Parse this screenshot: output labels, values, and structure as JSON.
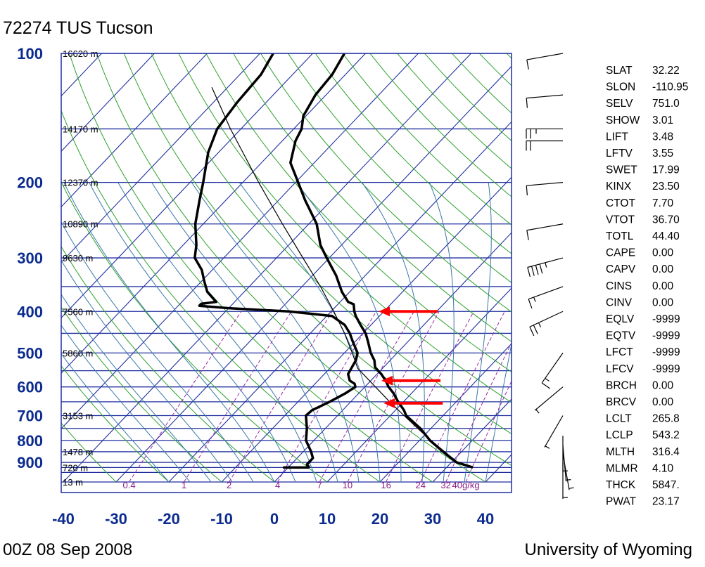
{
  "header": {
    "title": "72274 TUS Tucson"
  },
  "footer": {
    "date": "00Z 08 Sep 2008",
    "source": "University of Wyoming"
  },
  "chart_data": {
    "type": "skew-t",
    "title": "72274 TUS Tucson",
    "xlabel": "",
    "ylabel": "",
    "x_ticks": [
      "-40",
      "-30",
      "-20",
      "-10",
      "0",
      "10",
      "20",
      "30",
      "40"
    ],
    "y_ticks": [
      {
        "p": 100,
        "label": "100"
      },
      {
        "p": 200,
        "label": "200"
      },
      {
        "p": 300,
        "label": "300"
      },
      {
        "p": 400,
        "label": "400"
      },
      {
        "p": 500,
        "label": "500"
      },
      {
        "p": 600,
        "label": "600"
      },
      {
        "p": 700,
        "label": "700"
      },
      {
        "p": 800,
        "label": "800"
      },
      {
        "p": 900,
        "label": "900"
      }
    ],
    "height_labels": [
      {
        "p": 100,
        "label": "16620 m"
      },
      {
        "p": 150,
        "label": "14170 m"
      },
      {
        "p": 200,
        "label": "12370 m"
      },
      {
        "p": 250,
        "label": "10890 m"
      },
      {
        "p": 300,
        "label": "9630 m"
      },
      {
        "p": 400,
        "label": "7560 m"
      },
      {
        "p": 500,
        "label": "5860 m"
      },
      {
        "p": 700,
        "label": "3153 m"
      },
      {
        "p": 850,
        "label": "1478 m"
      },
      {
        "p": 925,
        "label": "720 m"
      },
      {
        "p": 1000,
        "label": "13 m"
      }
    ],
    "mixing_ratio_labels": [
      "0.4",
      "1",
      "2",
      "4",
      "7",
      "10",
      "16",
      "24",
      "32",
      "40g/kg"
    ],
    "xlim": [
      -40,
      44
    ],
    "plim": [
      1000,
      100
    ],
    "grid": true,
    "temperature": [
      {
        "p": 925,
        "t": 35.0
      },
      {
        "p": 900,
        "t": 31.0
      },
      {
        "p": 850,
        "t": 26.5
      },
      {
        "p": 800,
        "t": 22.0
      },
      {
        "p": 750,
        "t": 18.0
      },
      {
        "p": 700,
        "t": 13.0
      },
      {
        "p": 680,
        "t": 11.6
      },
      {
        "p": 650,
        "t": 9.0
      },
      {
        "p": 620,
        "t": 6.5
      },
      {
        "p": 600,
        "t": 4.5
      },
      {
        "p": 580,
        "t": 2.8
      },
      {
        "p": 560,
        "t": 0.8
      },
      {
        "p": 540,
        "t": -1.6
      },
      {
        "p": 520,
        "t": -3.0
      },
      {
        "p": 500,
        "t": -5.0
      },
      {
        "p": 470,
        "t": -7.6
      },
      {
        "p": 450,
        "t": -9.5
      },
      {
        "p": 430,
        "t": -12.0
      },
      {
        "p": 410,
        "t": -14.5
      },
      {
        "p": 400,
        "t": -15.6
      },
      {
        "p": 385,
        "t": -17.0
      },
      {
        "p": 380,
        "t": -18.5
      },
      {
        "p": 360,
        "t": -21.5
      },
      {
        "p": 330,
        "t": -25.5
      },
      {
        "p": 300,
        "t": -30.5
      },
      {
        "p": 280,
        "t": -34.0
      },
      {
        "p": 250,
        "t": -38.5
      },
      {
        "p": 220,
        "t": -45.0
      },
      {
        "p": 200,
        "t": -49.5
      },
      {
        "p": 180,
        "t": -54.5
      },
      {
        "p": 160,
        "t": -57.5
      },
      {
        "p": 150,
        "t": -58.5
      },
      {
        "p": 140,
        "t": -60.5
      },
      {
        "p": 125,
        "t": -62.0
      },
      {
        "p": 112,
        "t": -62.5
      },
      {
        "p": 100,
        "t": -64.0
      }
    ],
    "dewpoint": [
      {
        "p": 925,
        "t": 4.0
      },
      {
        "p": 910,
        "t": 3.0
      },
      {
        "p": 880,
        "t": 3.0
      },
      {
        "p": 850,
        "t": 1.5
      },
      {
        "p": 800,
        "t": -1.5
      },
      {
        "p": 750,
        "t": -3.5
      },
      {
        "p": 700,
        "t": -6.0
      },
      {
        "p": 680,
        "t": -5.8
      },
      {
        "p": 650,
        "t": -4.0
      },
      {
        "p": 620,
        "t": -2.5
      },
      {
        "p": 600,
        "t": -1.8
      },
      {
        "p": 590,
        "t": -2.5
      },
      {
        "p": 580,
        "t": -4.0
      },
      {
        "p": 560,
        "t": -5.5
      },
      {
        "p": 540,
        "t": -6.0
      },
      {
        "p": 520,
        "t": -6.5
      },
      {
        "p": 500,
        "t": -7.5
      },
      {
        "p": 470,
        "t": -10.5
      },
      {
        "p": 450,
        "t": -12.5
      },
      {
        "p": 430,
        "t": -15.0
      },
      {
        "p": 410,
        "t": -19.0
      },
      {
        "p": 400,
        "t": -28.0
      },
      {
        "p": 393,
        "t": -40.0
      },
      {
        "p": 388,
        "t": -46.0
      },
      {
        "p": 384,
        "t": -46.0
      },
      {
        "p": 380,
        "t": -43.5
      },
      {
        "p": 360,
        "t": -47.0
      },
      {
        "p": 340,
        "t": -49.5
      },
      {
        "p": 320,
        "t": -52.0
      },
      {
        "p": 300,
        "t": -55.5
      },
      {
        "p": 280,
        "t": -57.5
      },
      {
        "p": 250,
        "t": -61.5
      },
      {
        "p": 220,
        "t": -65.0
      },
      {
        "p": 200,
        "t": -67.5
      },
      {
        "p": 170,
        "t": -72.0
      },
      {
        "p": 150,
        "t": -74.5
      },
      {
        "p": 130,
        "t": -75.5
      },
      {
        "p": 112,
        "t": -76.0
      },
      {
        "p": 100,
        "t": -77.5
      }
    ],
    "parcel": [
      {
        "p": 900,
        "t": 31.2
      },
      {
        "p": 850,
        "t": 26.8
      },
      {
        "p": 800,
        "t": 22.2
      },
      {
        "p": 750,
        "t": 17.5
      },
      {
        "p": 700,
        "t": 12.6
      },
      {
        "p": 650,
        "t": 7.4
      },
      {
        "p": 600,
        "t": 2.0
      },
      {
        "p": 543,
        "t": -4.7
      },
      {
        "p": 500,
        "t": -8.5
      },
      {
        "p": 450,
        "t": -13.5
      },
      {
        "p": 400,
        "t": -19.5
      },
      {
        "p": 350,
        "t": -26.5
      },
      {
        "p": 300,
        "t": -35.0
      },
      {
        "p": 250,
        "t": -45.0
      },
      {
        "p": 200,
        "t": -57.0
      },
      {
        "p": 150,
        "t": -72.0
      },
      {
        "p": 120,
        "t": -83.0
      }
    ],
    "winds": [
      {
        "p": 100,
        "dir": 260,
        "spd": 10
      },
      {
        "p": 125,
        "dir": 265,
        "spd": 10
      },
      {
        "p": 150,
        "dir": 270,
        "spd": 25
      },
      {
        "p": 160,
        "dir": 270,
        "spd": 20
      },
      {
        "p": 200,
        "dir": 265,
        "spd": 10
      },
      {
        "p": 250,
        "dir": 260,
        "spd": 10
      },
      {
        "p": 300,
        "dir": 255,
        "spd": 45
      },
      {
        "p": 350,
        "dir": 250,
        "spd": 15
      },
      {
        "p": 400,
        "dir": 245,
        "spd": 25
      },
      {
        "p": 500,
        "dir": 215,
        "spd": 15
      },
      {
        "p": 600,
        "dir": 230,
        "spd": 5
      },
      {
        "p": 700,
        "dir": 210,
        "spd": 5
      },
      {
        "p": 780,
        "dir": 180,
        "spd": 5
      },
      {
        "p": 820,
        "dir": 175,
        "spd": 5
      },
      {
        "p": 860,
        "dir": 170,
        "spd": 5
      },
      {
        "p": 900,
        "dir": 180,
        "spd": 5
      }
    ],
    "arrows": [
      {
        "p": 400,
        "t": -11.0
      },
      {
        "p": 580,
        "t": 2.0
      },
      {
        "p": 655,
        "t": 6.5
      }
    ]
  },
  "indices": [
    {
      "label": "SLAT",
      "value": "32.22"
    },
    {
      "label": "SLON",
      "value": "-110.95"
    },
    {
      "label": "SELV",
      "value": "751.0"
    },
    {
      "label": "SHOW",
      "value": "3.01"
    },
    {
      "label": "LIFT",
      "value": "3.48"
    },
    {
      "label": "LFTV",
      "value": "3.55"
    },
    {
      "label": "SWET",
      "value": "17.99"
    },
    {
      "label": "KINX",
      "value": "23.50"
    },
    {
      "label": "CTOT",
      "value": "7.70"
    },
    {
      "label": "VTOT",
      "value": "36.70"
    },
    {
      "label": "TOTL",
      "value": "44.40"
    },
    {
      "label": "CAPE",
      "value": "0.00"
    },
    {
      "label": "CAPV",
      "value": "0.00"
    },
    {
      "label": "CINS",
      "value": "0.00"
    },
    {
      "label": "CINV",
      "value": "0.00"
    },
    {
      "label": "EQLV",
      "value": "-9999"
    },
    {
      "label": "EQTV",
      "value": "-9999"
    },
    {
      "label": "LFCT",
      "value": "-9999"
    },
    {
      "label": "LFCV",
      "value": "-9999"
    },
    {
      "label": "BRCH",
      "value": "0.00"
    },
    {
      "label": "BRCV",
      "value": "0.00"
    },
    {
      "label": "LCLT",
      "value": "265.8"
    },
    {
      "label": "LCLP",
      "value": "543.2"
    },
    {
      "label": "MLTH",
      "value": "316.4"
    },
    {
      "label": "MLMR",
      "value": "4.10"
    },
    {
      "label": "THCK",
      "value": "5847."
    },
    {
      "label": "PWAT",
      "value": "23.17"
    }
  ],
  "colors": {
    "isobar": "#1f2f9f",
    "isotherm": "#1f2f9f",
    "dry_adiabat": "#2ca02c",
    "moist_adiabat": "#3a78a8",
    "mixing_ratio": "#9a2aa8",
    "sounding": "#000000",
    "arrow": "#ff0000",
    "label_blue": "#0b2b8f"
  }
}
